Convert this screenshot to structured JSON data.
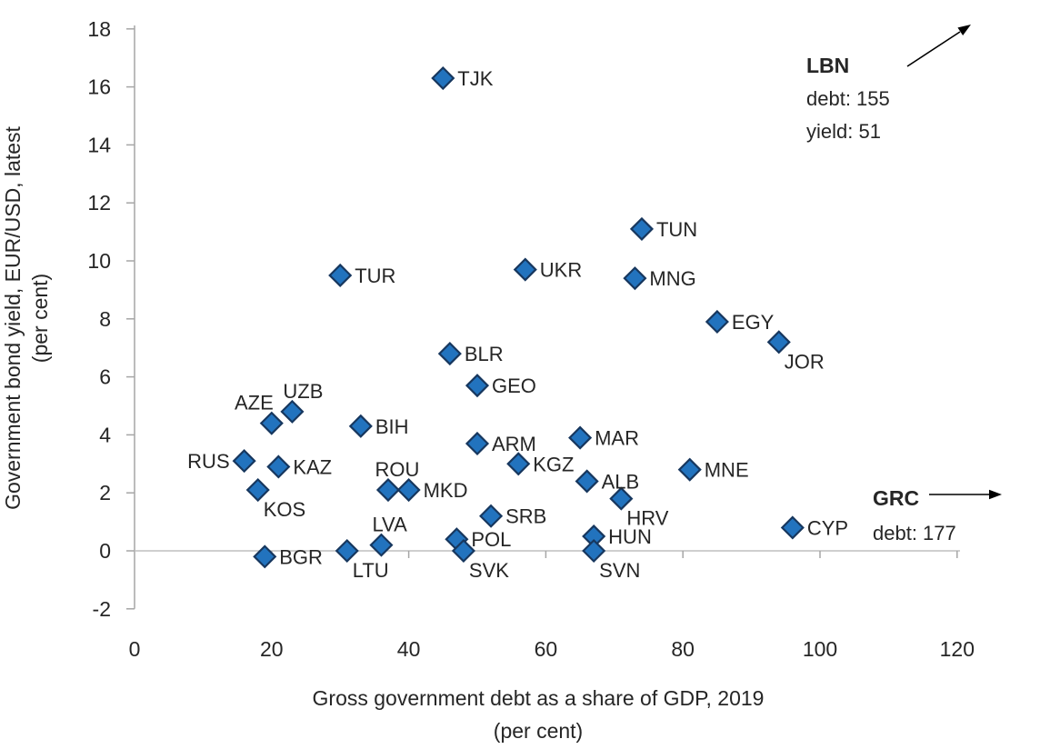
{
  "chart_data": {
    "type": "scatter",
    "title": "",
    "x_axis": {
      "title_line1": "Gross government debt as a share of GDP, 2019",
      "title_line2": "(per cent)",
      "ticks": [
        0,
        20,
        40,
        60,
        80,
        100,
        120
      ],
      "range": [
        0,
        120
      ]
    },
    "y_axis": {
      "title_line1": "Government bond yield, EUR/USD, latest",
      "title_line2": "(per cent)",
      "ticks": [
        -2,
        0,
        2,
        4,
        6,
        8,
        10,
        12,
        14,
        16,
        18
      ],
      "range": [
        -2,
        18
      ]
    },
    "grid": false,
    "legend": "none",
    "marker": "diamond",
    "colors": {
      "point_fill": "#2273BE",
      "point_stroke": "#17375E",
      "axis_line": "#A6A6A6",
      "zero_line": "#BFBFBF",
      "text": "#262626"
    },
    "points": [
      {
        "code": "TJK",
        "debt": 45,
        "yield": 16.3,
        "label_pos": "right"
      },
      {
        "code": "TUR",
        "debt": 30,
        "yield": 9.5,
        "label_pos": "right"
      },
      {
        "code": "UKR",
        "debt": 57,
        "yield": 9.7,
        "label_pos": "right"
      },
      {
        "code": "TUN",
        "debt": 74,
        "yield": 11.1,
        "label_pos": "right"
      },
      {
        "code": "MNG",
        "debt": 73,
        "yield": 9.4,
        "label_pos": "right"
      },
      {
        "code": "EGY",
        "debt": 85,
        "yield": 7.9,
        "label_pos": "right"
      },
      {
        "code": "JOR",
        "debt": 94,
        "yield": 7.2,
        "label_pos": "below-right"
      },
      {
        "code": "BLR",
        "debt": 46,
        "yield": 6.8,
        "label_pos": "right"
      },
      {
        "code": "GEO",
        "debt": 50,
        "yield": 5.7,
        "label_pos": "right"
      },
      {
        "code": "UZB",
        "debt": 23,
        "yield": 4.8,
        "label_pos": "above-right"
      },
      {
        "code": "AZE",
        "debt": 20,
        "yield": 4.4,
        "label_pos": "above-left"
      },
      {
        "code": "BIH",
        "debt": 33,
        "yield": 4.3,
        "label_pos": "right"
      },
      {
        "code": "RUS",
        "debt": 16,
        "yield": 3.1,
        "label_pos": "left"
      },
      {
        "code": "KAZ",
        "debt": 21,
        "yield": 2.9,
        "label_pos": "right"
      },
      {
        "code": "KOS",
        "debt": 18,
        "yield": 2.1,
        "label_pos": "below-right"
      },
      {
        "code": "ROU",
        "debt": 37,
        "yield": 2.1,
        "label_pos": "above"
      },
      {
        "code": "MKD",
        "debt": 40,
        "yield": 2.1,
        "label_pos": "right"
      },
      {
        "code": "ARM",
        "debt": 50,
        "yield": 3.7,
        "label_pos": "right"
      },
      {
        "code": "KGZ",
        "debt": 56,
        "yield": 3.0,
        "label_pos": "right"
      },
      {
        "code": "MAR",
        "debt": 65,
        "yield": 3.9,
        "label_pos": "right"
      },
      {
        "code": "ALB",
        "debt": 66,
        "yield": 2.4,
        "label_pos": "right"
      },
      {
        "code": "HRV",
        "debt": 71,
        "yield": 1.8,
        "label_pos": "below-right"
      },
      {
        "code": "MNE",
        "debt": 81,
        "yield": 2.8,
        "label_pos": "right"
      },
      {
        "code": "SRB",
        "debt": 52,
        "yield": 1.2,
        "label_pos": "right"
      },
      {
        "code": "POL",
        "debt": 47,
        "yield": 0.4,
        "label_pos": "right"
      },
      {
        "code": "SVK",
        "debt": 48,
        "yield": 0.0,
        "label_pos": "below-right"
      },
      {
        "code": "LVA",
        "debt": 36,
        "yield": 0.2,
        "label_pos": "above-right"
      },
      {
        "code": "LTU",
        "debt": 31,
        "yield": 0.0,
        "label_pos": "below-right"
      },
      {
        "code": "BGR",
        "debt": 19,
        "yield": -0.2,
        "label_pos": "right"
      },
      {
        "code": "HUN",
        "debt": 67,
        "yield": 0.5,
        "label_pos": "right"
      },
      {
        "code": "SVN",
        "debt": 67,
        "yield": 0.0,
        "label_pos": "below-right"
      },
      {
        "code": "CYP",
        "debt": 96,
        "yield": 0.8,
        "label_pos": "right"
      }
    ],
    "annotations": [
      {
        "name": "LBN",
        "lines": [
          "debt: 155",
          "yield: 51"
        ],
        "arrow_direction": "up-right"
      },
      {
        "name": "GRC",
        "lines": [
          "debt: 177"
        ],
        "arrow_direction": "right"
      }
    ]
  }
}
